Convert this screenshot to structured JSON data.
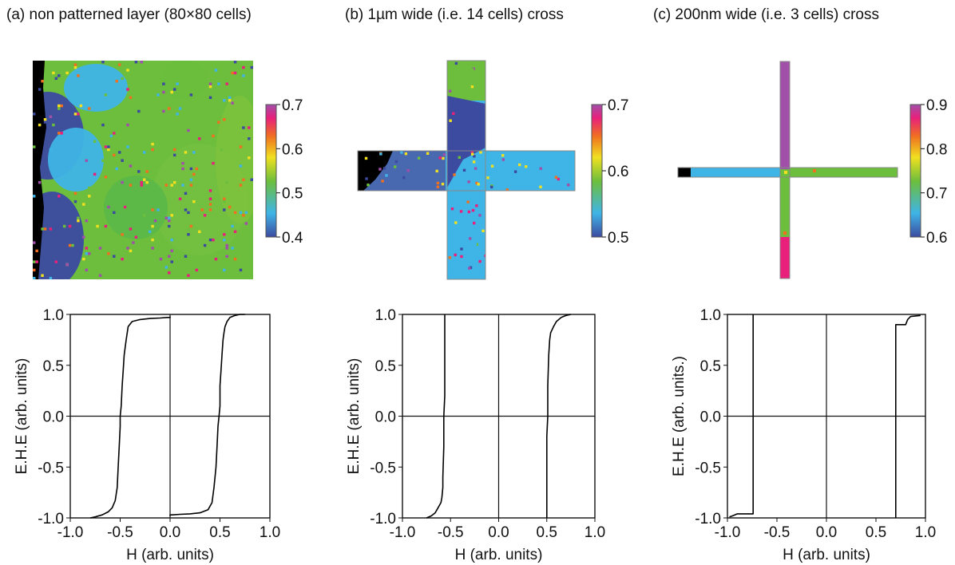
{
  "panels": [
    {
      "title": "(a) non patterned layer (80×80 cells)",
      "colorbar": {
        "min": 0.4,
        "max": 0.7,
        "ticks": [
          "0.7",
          "0.6",
          "0.5",
          "0.4"
        ]
      }
    },
    {
      "title": "(b) 1µm wide (i.e. 14 cells) cross",
      "colorbar": {
        "min": 0.5,
        "max": 0.7,
        "ticks": [
          "0.7",
          "0.6",
          "0.5"
        ]
      }
    },
    {
      "title": "(c) 200nm wide (i.e. 3 cells) cross",
      "colorbar": {
        "min": 0.6,
        "max": 0.9,
        "ticks": [
          "0.9",
          "0.8",
          "0.7",
          "0.6"
        ]
      }
    }
  ],
  "colors": {
    "colormap": [
      "#3c4aa0",
      "#3fb4e6",
      "#6cbe3c",
      "#f0e020",
      "#f07020",
      "#e8207c",
      "#a050a8"
    ],
    "background": "#000000",
    "line": "#000000"
  },
  "chart_data": [
    {
      "type": "line",
      "title": "",
      "xlabel": "H (arb. units)",
      "ylabel": "E.H.E (arb. units)",
      "xlim": [
        -1.0,
        1.0
      ],
      "ylim": [
        -1.0,
        1.0
      ],
      "xticks": [
        "-1.0",
        "-0.5",
        "0.0",
        "0.5",
        "1.0"
      ],
      "yticks": [
        "1.0",
        "0.5",
        "0.0",
        "-0.5",
        "-1.0"
      ],
      "series": [
        {
          "name": "",
          "x": [
            0.0,
            0.0,
            0.02,
            0.1,
            0.2,
            0.3,
            0.38,
            0.42,
            0.44,
            0.46,
            0.47,
            0.48,
            0.49,
            0.5,
            0.5,
            0.51,
            0.52,
            0.53,
            0.54,
            0.55,
            0.57,
            0.6,
            0.65,
            0.7,
            0.75
          ],
          "y": [
            -0.98,
            -0.97,
            -0.97,
            -0.965,
            -0.96,
            -0.95,
            -0.92,
            -0.85,
            -0.7,
            -0.5,
            -0.3,
            -0.1,
            0.0,
            0.1,
            0.3,
            0.45,
            0.6,
            0.75,
            0.82,
            0.88,
            0.93,
            0.97,
            0.99,
            1.0,
            1.0
          ]
        },
        {
          "name": "",
          "x": [
            0.0,
            0.0,
            -0.03,
            -0.1,
            -0.2,
            -0.3,
            -0.38,
            -0.42,
            -0.44,
            -0.46,
            -0.47,
            -0.48,
            -0.49,
            -0.5,
            -0.5,
            -0.51,
            -0.52,
            -0.53,
            -0.55,
            -0.58,
            -0.62,
            -0.68,
            -0.75,
            -0.8
          ],
          "y": [
            0.98,
            0.97,
            0.97,
            0.965,
            0.96,
            0.95,
            0.93,
            0.88,
            0.75,
            0.6,
            0.45,
            0.3,
            0.1,
            0.0,
            -0.1,
            -0.3,
            -0.5,
            -0.7,
            -0.83,
            -0.9,
            -0.94,
            -0.97,
            -0.99,
            -1.0
          ]
        }
      ]
    },
    {
      "type": "line",
      "title": "",
      "xlabel": "H (arb. units)",
      "ylabel": "E.H.E (arb. units)",
      "xlim": [
        -1.0,
        1.0
      ],
      "ylim": [
        -1.0,
        1.0
      ],
      "xticks": [
        "-1.0",
        "-0.5",
        "0.0",
        "0.5",
        "1.0"
      ],
      "yticks": [
        "1.0",
        "0.5",
        "0.0",
        "-0.5",
        "-1.0"
      ],
      "series": [
        {
          "name": "",
          "x": [
            -0.75,
            -0.7,
            -0.66,
            -0.63,
            -0.6,
            -0.59,
            -0.58,
            -0.58,
            -0.57,
            -0.57,
            -0.56,
            -0.56,
            -0.56
          ],
          "y": [
            -1.0,
            -0.98,
            -0.95,
            -0.9,
            -0.85,
            -0.8,
            -0.7,
            -0.6,
            -0.3,
            0.0,
            0.2,
            0.6,
            1.0
          ]
        },
        {
          "name": "",
          "x": [
            0.5,
            0.5,
            0.51,
            0.51,
            0.52,
            0.53,
            0.54,
            0.57,
            0.6,
            0.65,
            0.7,
            0.75
          ],
          "y": [
            -1.0,
            -0.2,
            0.0,
            0.3,
            0.6,
            0.75,
            0.82,
            0.88,
            0.93,
            0.97,
            0.99,
            1.0
          ]
        }
      ]
    },
    {
      "type": "line",
      "title": "",
      "xlabel": "H (arb. units)",
      "ylabel": "E.H.E (arb. units.)",
      "xlim": [
        -1.0,
        1.0
      ],
      "ylim": [
        -1.0,
        1.0
      ],
      "xticks": [
        "-1.0",
        "-0.5",
        "0.0",
        "0.5",
        "1.0"
      ],
      "yticks": [
        "1.0",
        "0.5",
        "0.0",
        "-0.5",
        "-1.0"
      ],
      "series": [
        {
          "name": "",
          "x": [
            -0.98,
            -0.95,
            -0.9,
            -0.8,
            -0.74,
            -0.74,
            -0.74
          ],
          "y": [
            -0.99,
            -0.98,
            -0.96,
            -0.96,
            -0.96,
            0.0,
            1.0
          ]
        },
        {
          "name": "",
          "x": [
            0.7,
            0.7,
            0.7,
            0.75,
            0.8,
            0.82,
            0.85,
            0.95
          ],
          "y": [
            -1.0,
            0.0,
            0.9,
            0.9,
            0.9,
            0.95,
            0.98,
            0.99
          ]
        }
      ]
    }
  ]
}
